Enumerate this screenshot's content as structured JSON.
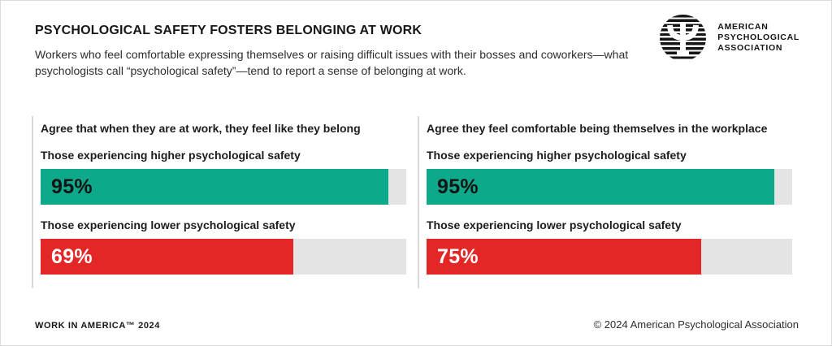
{
  "header": {
    "title": "PSYCHOLOGICAL SAFETY FOSTERS BELONGING AT WORK",
    "subtitle": "Workers who feel comfortable expressing themselves or raising difficult issues with their bosses and coworkers—what psychologists call “psychological safety”—tend to report a sense of belonging at work."
  },
  "logo": {
    "org_line1": "AMERICAN",
    "org_line2": "PSYCHOLOGICAL",
    "org_line3": "ASSOCIATION"
  },
  "footer": {
    "left": "WORK IN AMERICA™ 2024",
    "right": "© 2024 American Psychological Association"
  },
  "colors": {
    "green": "#0EA88A",
    "red": "#E32726",
    "track_gray": "#E4E4E4",
    "divider_gray": "#D8D8D8",
    "text_black": "#1C1C1C",
    "value_on_green": "#141414",
    "value_on_red": "#FFFFFF"
  },
  "chart_data": {
    "type": "bar",
    "orientation": "horizontal",
    "unit": "%",
    "xlim": [
      0,
      100
    ],
    "grid": false,
    "legend": false,
    "panels": [
      {
        "title": "Agree that when they are at work, they feel like they belong",
        "bars": [
          {
            "label": "Those experiencing higher psychological safety",
            "value": 95,
            "value_label": "95%",
            "color": "#0EA88A",
            "value_text_color": "#141414"
          },
          {
            "label": "Those experiencing lower psychological safety",
            "value": 69,
            "value_label": "69%",
            "color": "#E32726",
            "value_text_color": "#FFFFFF"
          }
        ]
      },
      {
        "title": "Agree they feel comfortable being themselves in the workplace",
        "bars": [
          {
            "label": "Those experiencing higher psychological safety",
            "value": 95,
            "value_label": "95%",
            "color": "#0EA88A",
            "value_text_color": "#141414"
          },
          {
            "label": "Those experiencing lower psychological safety",
            "value": 75,
            "value_label": "75%",
            "color": "#E32726",
            "value_text_color": "#FFFFFF"
          }
        ]
      }
    ]
  }
}
